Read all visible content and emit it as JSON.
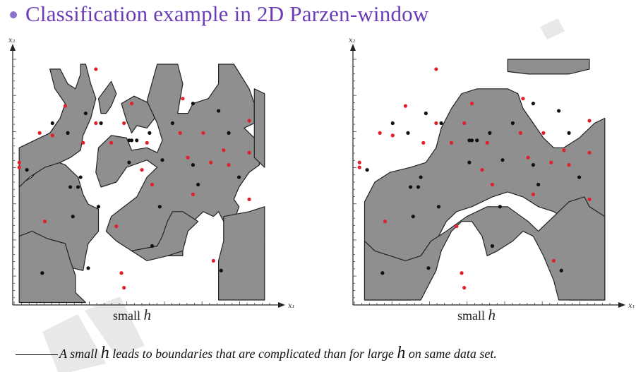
{
  "title": "Classification example in 2D Parzen-window",
  "panels": [
    {
      "caption_text": "small ",
      "caption_var": "h",
      "axis_x_label": "x₁",
      "axis_y_label": "x₂"
    },
    {
      "caption_text": "small ",
      "caption_var": "h",
      "axis_x_label": "x₁",
      "axis_y_label": "x₂"
    }
  ],
  "footnote": {
    "part1": "A small ",
    "var1": "h",
    "part2": " leads to boundaries that are complicated than for large ",
    "var2": "h",
    "part3": " on same data set."
  },
  "colors": {
    "region": "#8f8f8f",
    "class_a": "#e0202a",
    "class_b": "#111111",
    "title": "#6b3cb6"
  },
  "points": {
    "red": [
      [
        0.32,
        0.96
      ],
      [
        0.46,
        0.82
      ],
      [
        0.66,
        0.84
      ],
      [
        0.2,
        0.81
      ],
      [
        0.92,
        0.75
      ],
      [
        0.1,
        0.7
      ],
      [
        0.15,
        0.69
      ],
      [
        0.27,
        0.66
      ],
      [
        0.32,
        0.74
      ],
      [
        0.43,
        0.74
      ],
      [
        0.38,
        0.66
      ],
      [
        0.52,
        0.66
      ],
      [
        0.65,
        0.7
      ],
      [
        0.74,
        0.7
      ],
      [
        0.82,
        0.63
      ],
      [
        0.84,
        0.57
      ],
      [
        0.92,
        0.62
      ],
      [
        0.02,
        0.58
      ],
      [
        0.02,
        0.56
      ],
      [
        0.68,
        0.6
      ],
      [
        0.77,
        0.58
      ],
      [
        0.5,
        0.55
      ],
      [
        0.54,
        0.49
      ],
      [
        0.7,
        0.45
      ],
      [
        0.92,
        0.43
      ],
      [
        0.12,
        0.34
      ],
      [
        0.4,
        0.32
      ],
      [
        0.78,
        0.18
      ],
      [
        0.42,
        0.13
      ],
      [
        0.43,
        0.07
      ]
    ],
    "black": [
      [
        0.15,
        0.74
      ],
      [
        0.21,
        0.7
      ],
      [
        0.28,
        0.78
      ],
      [
        0.48,
        0.67
      ],
      [
        0.46,
        0.67
      ],
      [
        0.45,
        0.67
      ],
      [
        0.53,
        0.7
      ],
      [
        0.58,
        0.59
      ],
      [
        0.7,
        0.57
      ],
      [
        0.05,
        0.55
      ],
      [
        0.45,
        0.58
      ],
      [
        0.26,
        0.52
      ],
      [
        0.22,
        0.48
      ],
      [
        0.72,
        0.49
      ],
      [
        0.25,
        0.48
      ],
      [
        0.33,
        0.4
      ],
      [
        0.23,
        0.36
      ],
      [
        0.57,
        0.4
      ],
      [
        0.88,
        0.52
      ],
      [
        0.54,
        0.24
      ],
      [
        0.11,
        0.13
      ],
      [
        0.29,
        0.15
      ],
      [
        0.62,
        0.74
      ],
      [
        0.84,
        0.7
      ],
      [
        0.81,
        0.14
      ],
      [
        0.8,
        0.79
      ],
      [
        0.7,
        0.82
      ],
      [
        0.34,
        0.74
      ]
    ]
  }
}
